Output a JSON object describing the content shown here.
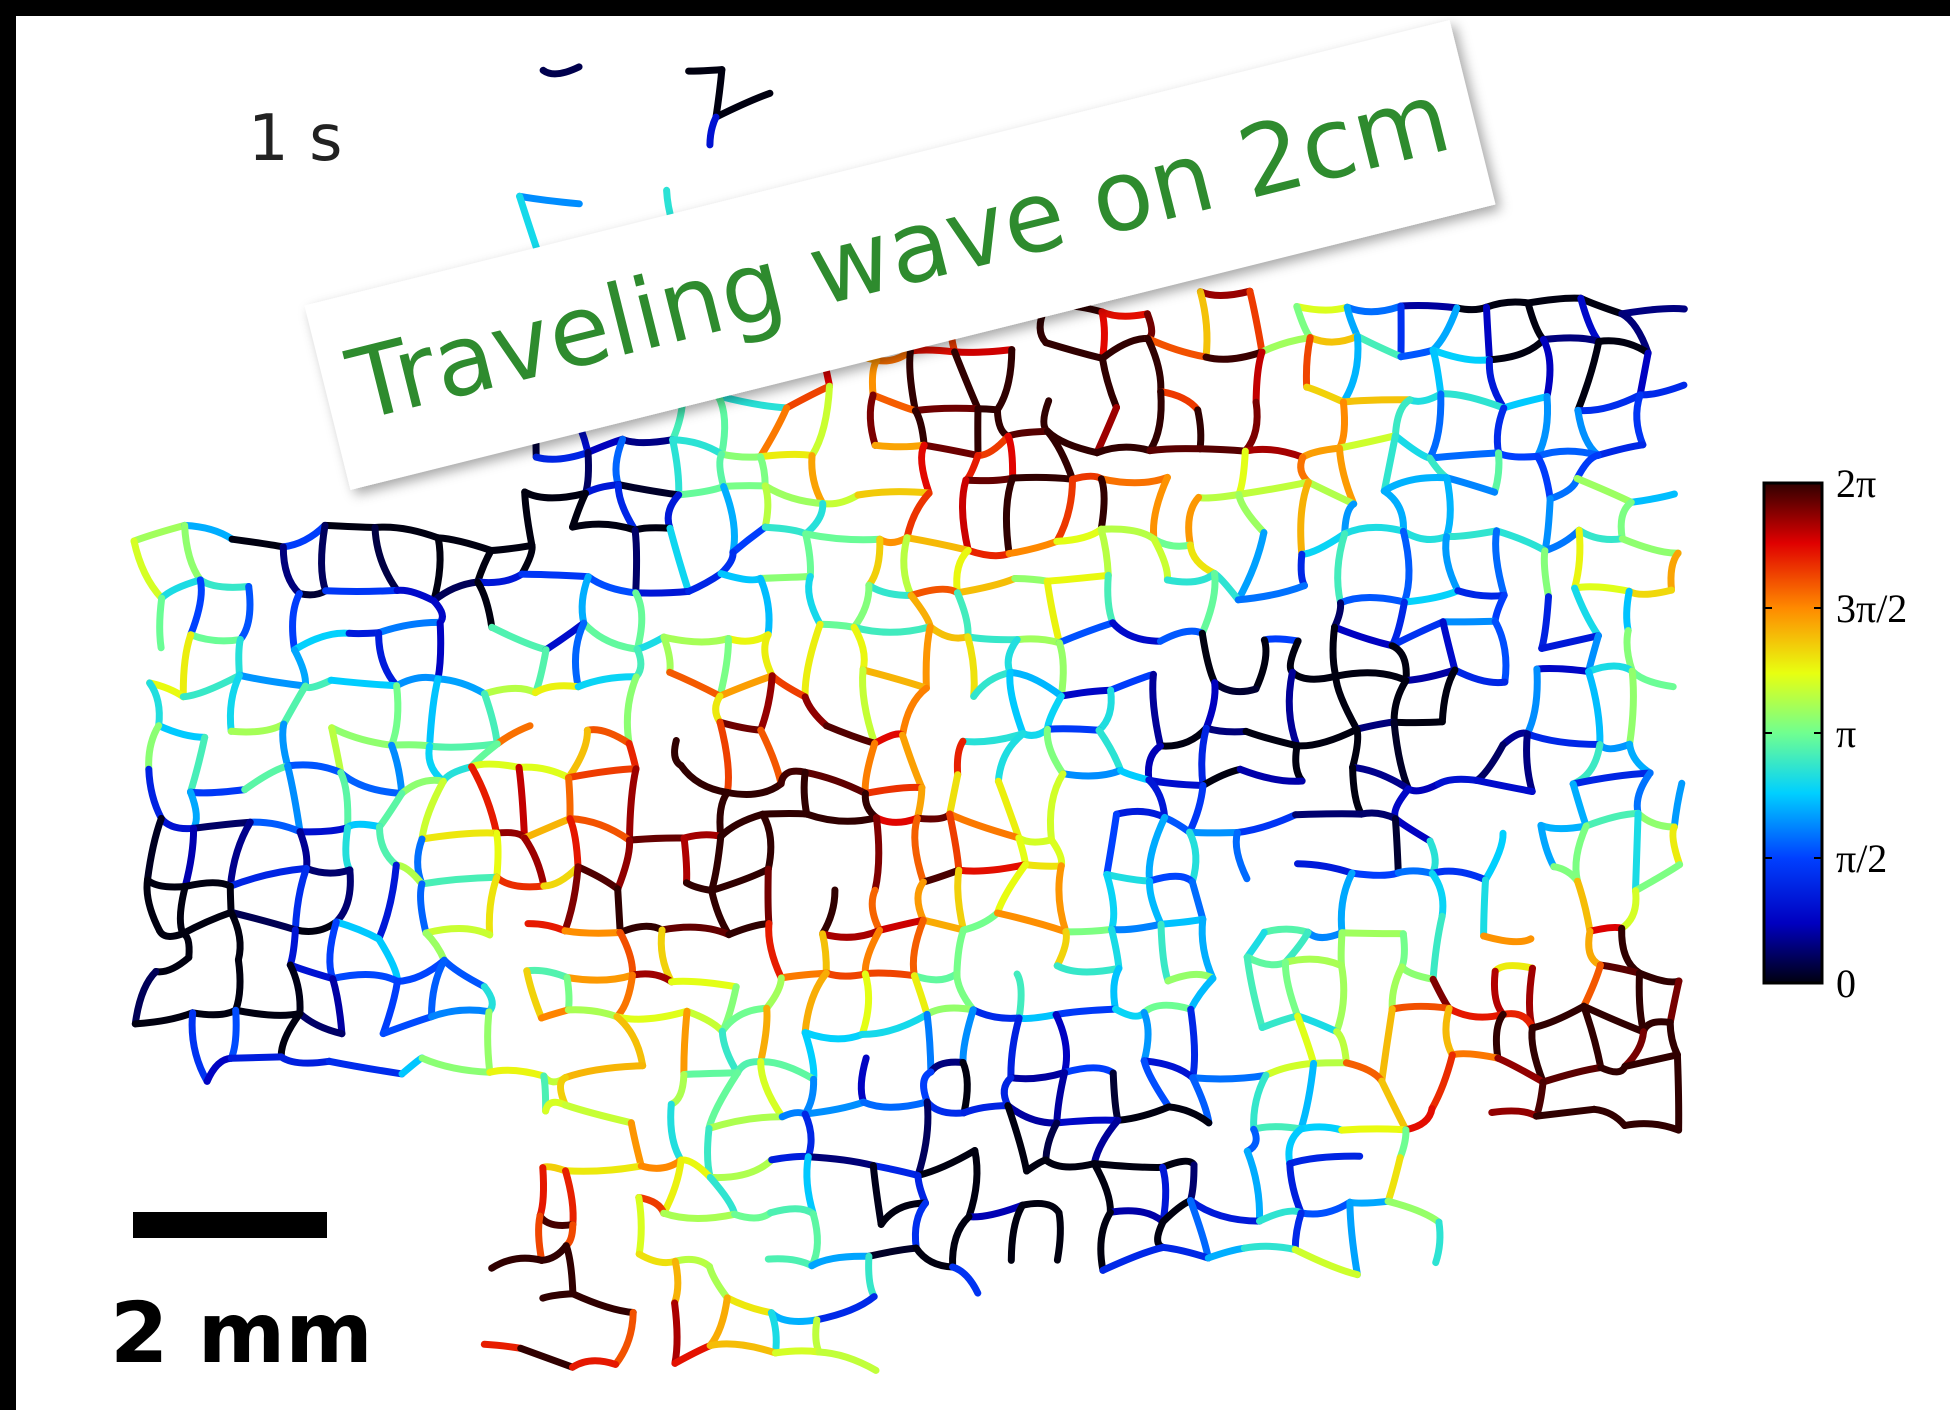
{
  "time_label": "1 s",
  "callout": "Traveling wave on 2cm",
  "scale_bar": {
    "label": "2 mm"
  },
  "colorbar": {
    "ticks": [
      "2π",
      "3π/2",
      "π",
      "π/2",
      "0"
    ]
  }
}
